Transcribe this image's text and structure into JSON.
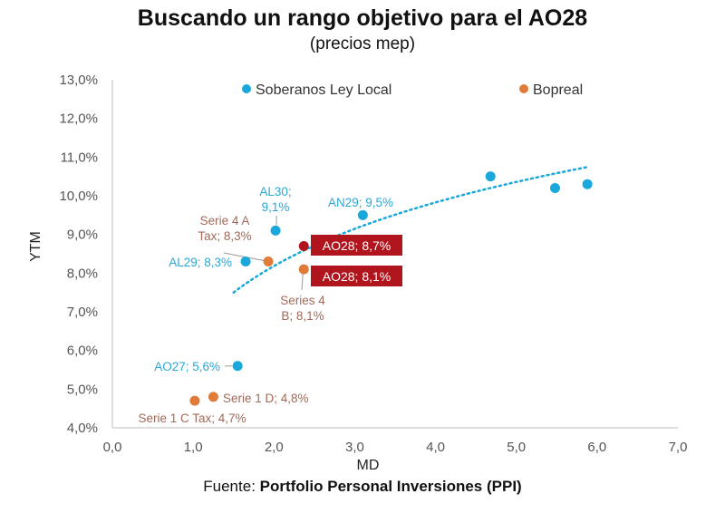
{
  "title": "Buscando un rango objetivo para el AO28",
  "subtitle": "(precios mep)",
  "source": {
    "prefix": "Fuente: ",
    "name": "Portfolio Personal Inversiones (PPI)"
  },
  "colors": {
    "soberanos": "#1aa8dc",
    "bopreal": "#e07b39",
    "highlight": "#b0141c",
    "soberanos_label": "#2aa7d3",
    "bopreal_label": "#a06a5a"
  },
  "chart_data": {
    "type": "scatter",
    "xlabel": "MD",
    "ylabel": "YTM",
    "xlim": [
      0,
      7
    ],
    "ylim": [
      4,
      13
    ],
    "x_ticks": [
      "0,0",
      "1,0",
      "2,0",
      "3,0",
      "4,0",
      "5,0",
      "6,0",
      "7,0"
    ],
    "y_ticks": [
      "4,0%",
      "5,0%",
      "6,0%",
      "7,0%",
      "8,0%",
      "9,0%",
      "10,0%",
      "11,0%",
      "12,0%",
      "13,0%"
    ],
    "legend": [
      "Soberanos Ley Local",
      "Bopreal"
    ],
    "series": [
      {
        "name": "Soberanos Ley Local",
        "points": [
          {
            "x": 1.55,
            "y": 5.6,
            "label": "AO27; 5,6%"
          },
          {
            "x": 1.65,
            "y": 8.3,
            "label": "AL29; 8,3%"
          },
          {
            "x": 2.02,
            "y": 9.1,
            "label": [
              "AL30;",
              "9,1%"
            ]
          },
          {
            "x": 3.1,
            "y": 9.5,
            "label": "AN29; 9,5%"
          },
          {
            "x": 4.68,
            "y": 10.5,
            "label": ""
          },
          {
            "x": 5.48,
            "y": 10.2,
            "label": ""
          },
          {
            "x": 5.88,
            "y": 10.3,
            "label": ""
          }
        ]
      },
      {
        "name": "Bopreal",
        "points": [
          {
            "x": 1.02,
            "y": 4.7,
            "label": "Serie 1 C Tax; 4,7%"
          },
          {
            "x": 1.25,
            "y": 4.8,
            "label": "Serie 1 D; 4,8%"
          },
          {
            "x": 1.93,
            "y": 8.3,
            "label": [
              "Serie 4 A",
              "Tax; 8,3%"
            ]
          },
          {
            "x": 2.37,
            "y": 8.1,
            "label": [
              "Series 4",
              "B; 8,1%"
            ]
          }
        ]
      },
      {
        "name": "AO28",
        "points": [
          {
            "x": 2.37,
            "y": 8.7,
            "label": "AO28; 8,7%"
          },
          {
            "x": 2.37,
            "y": 8.1,
            "label": "AO28; 8,1%"
          }
        ]
      }
    ],
    "trendline": {
      "type": "logarithmic",
      "x_range": [
        1.5,
        5.9
      ],
      "y_start": 7.5,
      "y_end": 10.75
    }
  }
}
